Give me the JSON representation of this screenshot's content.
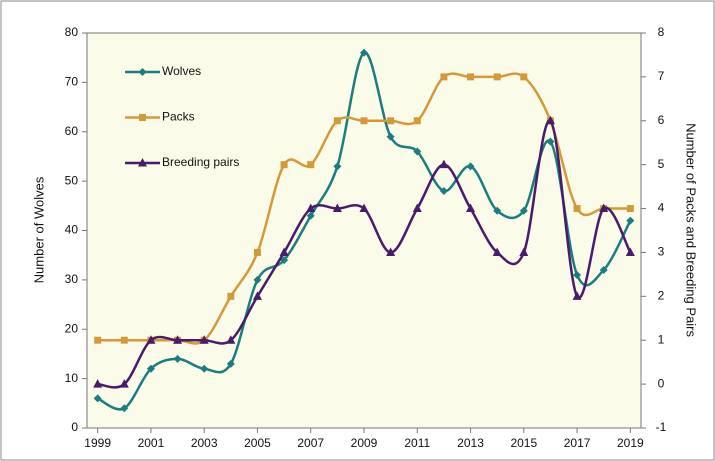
{
  "chart_data": {
    "type": "line",
    "x": [
      1999,
      2000,
      2001,
      2002,
      2003,
      2004,
      2005,
      2006,
      2007,
      2008,
      2009,
      2010,
      2011,
      2012,
      2013,
      2014,
      2015,
      2016,
      2017,
      2018,
      2019
    ],
    "xlim": [
      1998.6,
      2019.4
    ],
    "xticks": [
      1999,
      2001,
      2003,
      2005,
      2007,
      2009,
      2011,
      2013,
      2015,
      2017,
      2019
    ],
    "ylim": [
      0,
      80
    ],
    "yticks": [
      0,
      10,
      20,
      30,
      40,
      50,
      60,
      70,
      80
    ],
    "y2lim": [
      -1,
      8
    ],
    "y2ticks": [
      -1,
      0,
      1,
      2,
      3,
      4,
      5,
      6,
      7,
      8
    ],
    "ylabel": "Number of Wolves",
    "y2label": "Number of Packs and Breeding Pairs",
    "smooth": true,
    "series": [
      {
        "name": "Wolves",
        "color": "#1b7d7f",
        "marker": "diamond",
        "values": [
          6,
          4,
          12,
          14,
          12,
          13,
          30,
          34,
          43,
          53,
          76,
          59,
          56,
          48,
          53,
          44,
          44,
          58,
          31,
          32,
          42
        ]
      },
      {
        "name": "Packs",
        "color": "#d49a38",
        "marker": "square",
        "axis": "y2",
        "values": [
          1,
          1,
          1,
          1,
          1,
          2,
          3,
          5,
          5,
          6,
          6,
          6,
          6,
          7,
          7,
          7,
          7,
          6,
          4,
          4,
          4
        ]
      },
      {
        "name": "Breeding pairs",
        "color": "#4a1a6c",
        "marker": "triangle",
        "axis": "y2",
        "values": [
          0,
          0,
          1,
          1,
          1,
          1,
          2,
          3,
          4,
          4,
          4,
          3,
          4,
          5,
          4,
          3,
          3,
          6,
          2,
          4,
          3
        ]
      }
    ]
  }
}
